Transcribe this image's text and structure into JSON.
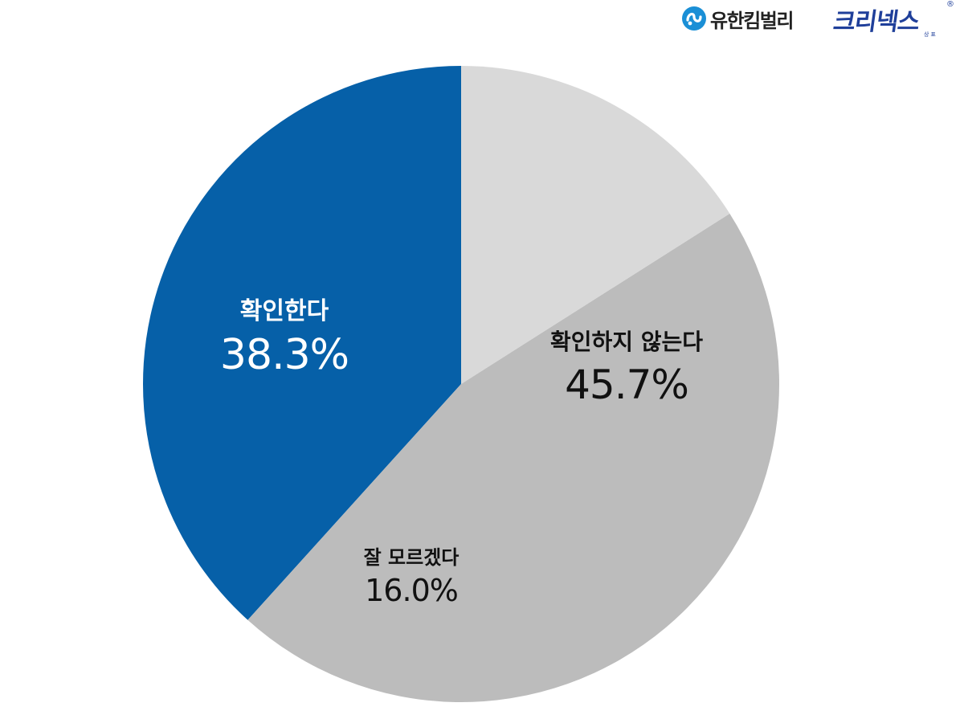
{
  "logos": {
    "yuhan": "유한킴벌리",
    "kleenex": "크리넥스",
    "kleenex_reg": "®",
    "kleenex_tm": "상표"
  },
  "chart_data": {
    "type": "pie",
    "title": "",
    "start_angle_deg": 0,
    "direction": "counterclockwise",
    "slices": [
      {
        "label": "확인한다",
        "value": 38.3,
        "display": "38.3%",
        "color": "#0660a8",
        "label_color": "#ffffff"
      },
      {
        "label": "확인하지 않는다",
        "value": 45.7,
        "display": "45.7%",
        "color": "#bcbcbc",
        "label_color": "#111111"
      },
      {
        "label": "잘 모르겠다",
        "value": 16.0,
        "display": "16.0%",
        "color": "#d9d9d9",
        "label_color": "#111111"
      }
    ]
  }
}
